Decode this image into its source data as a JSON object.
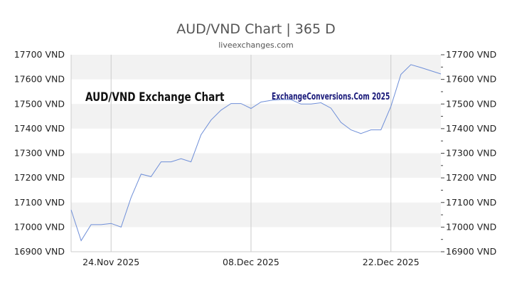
{
  "chart_data": {
    "type": "line",
    "title": "AUD/VND Chart | 365 D",
    "subtitle": "liveexchanges.com",
    "watermark_left": "AUD/VND Exchange Chart",
    "watermark_right": "ExchangeConversions.Com 2025",
    "ylim": [
      16900,
      17700
    ],
    "yticks": [
      16900,
      17000,
      17100,
      17200,
      17300,
      17400,
      17500,
      17600,
      17700
    ],
    "y_unit": "VND",
    "xlim": [
      "2025-11-20",
      "2025-12-27"
    ],
    "xticks": [
      {
        "date": "2025-11-24",
        "label": "24.Nov 2025"
      },
      {
        "date": "2025-12-08",
        "label": "08.Dec 2025"
      },
      {
        "date": "2025-12-22",
        "label": "22.Dec 2025"
      }
    ],
    "grid": "horizontal bands + vertical lines at x ticks",
    "line_color": "#6f8fd8",
    "x": [
      "2025-11-20",
      "2025-11-21",
      "2025-11-22",
      "2025-11-23",
      "2025-11-24",
      "2025-11-25",
      "2025-11-26",
      "2025-11-27",
      "2025-11-28",
      "2025-11-29",
      "2025-11-30",
      "2025-12-01",
      "2025-12-02",
      "2025-12-03",
      "2025-12-04",
      "2025-12-05",
      "2025-12-06",
      "2025-12-07",
      "2025-12-08",
      "2025-12-09",
      "2025-12-10",
      "2025-12-11",
      "2025-12-12",
      "2025-12-13",
      "2025-12-14",
      "2025-12-15",
      "2025-12-16",
      "2025-12-17",
      "2025-12-18",
      "2025-12-19",
      "2025-12-20",
      "2025-12-21",
      "2025-12-22",
      "2025-12-23",
      "2025-12-24",
      "2025-12-25",
      "2025-12-26",
      "2025-12-27"
    ],
    "values": [
      17070,
      16945,
      17010,
      17010,
      17015,
      17000,
      17120,
      17215,
      17205,
      17265,
      17265,
      17278,
      17265,
      17375,
      17435,
      17475,
      17502,
      17502,
      17482,
      17508,
      17515,
      17518,
      17518,
      17500,
      17500,
      17505,
      17483,
      17425,
      17395,
      17380,
      17395,
      17395,
      17490,
      17620,
      17660,
      17648,
      17635,
      17622
    ]
  }
}
